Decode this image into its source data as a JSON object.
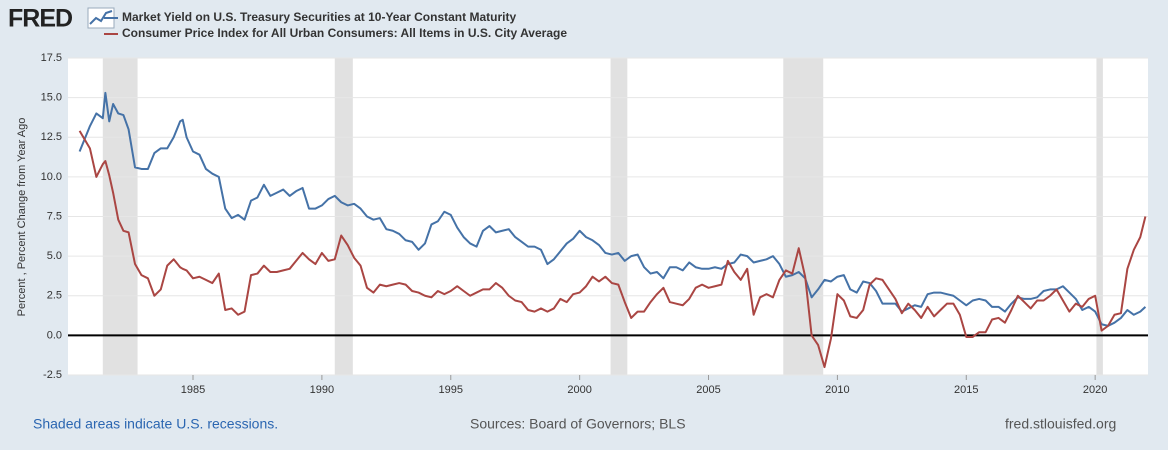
{
  "logo": "FRED",
  "chart_data": {
    "type": "line",
    "y_label": "Percent , Percent Change from Year Ago",
    "x": [
      1980.6,
      1981.0,
      1981.25,
      1981.5,
      1981.6,
      1981.75,
      1981.9,
      1982.1,
      1982.3,
      1982.5,
      1982.75,
      1983.0,
      1983.25,
      1983.5,
      1983.75,
      1984.0,
      1984.25,
      1984.5,
      1984.6,
      1984.75,
      1985.0,
      1985.25,
      1985.5,
      1985.75,
      1986.0,
      1986.25,
      1986.5,
      1986.75,
      1987.0,
      1987.25,
      1987.5,
      1987.75,
      1988.0,
      1988.25,
      1988.5,
      1988.75,
      1989.0,
      1989.25,
      1989.5,
      1989.75,
      1990.0,
      1990.25,
      1990.5,
      1990.75,
      1991.0,
      1991.25,
      1991.5,
      1991.75,
      1992.0,
      1992.25,
      1992.5,
      1992.75,
      1993.0,
      1993.25,
      1993.5,
      1993.75,
      1994.0,
      1994.25,
      1994.5,
      1994.75,
      1995.0,
      1995.25,
      1995.5,
      1995.75,
      1996.0,
      1996.25,
      1996.5,
      1996.75,
      1997.0,
      1997.25,
      1997.5,
      1997.75,
      1998.0,
      1998.25,
      1998.5,
      1998.75,
      1999.0,
      1999.25,
      1999.5,
      1999.75,
      2000.0,
      2000.25,
      2000.5,
      2000.75,
      2001.0,
      2001.25,
      2001.5,
      2001.75,
      2002.0,
      2002.25,
      2002.5,
      2002.75,
      2003.0,
      2003.25,
      2003.5,
      2003.75,
      2004.0,
      2004.25,
      2004.5,
      2004.75,
      2005.0,
      2005.25,
      2005.5,
      2005.75,
      2006.0,
      2006.25,
      2006.5,
      2006.75,
      2007.0,
      2007.25,
      2007.5,
      2007.75,
      2008.0,
      2008.25,
      2008.5,
      2008.75,
      2009.0,
      2009.25,
      2009.5,
      2009.75,
      2010.0,
      2010.25,
      2010.5,
      2010.75,
      2011.0,
      2011.25,
      2011.5,
      2011.75,
      2012.0,
      2012.25,
      2012.5,
      2012.75,
      2013.0,
      2013.25,
      2013.5,
      2013.75,
      2014.0,
      2014.25,
      2014.5,
      2014.75,
      2015.0,
      2015.25,
      2015.5,
      2015.75,
      2016.0,
      2016.25,
      2016.5,
      2016.75,
      2017.0,
      2017.25,
      2017.5,
      2017.75,
      2018.0,
      2018.25,
      2018.5,
      2018.75,
      2019.0,
      2019.25,
      2019.5,
      2019.75,
      2020.0,
      2020.25,
      2020.5,
      2020.75,
      2021.0,
      2021.25,
      2021.5,
      2021.75,
      2021.95
    ],
    "series": [
      {
        "name": "Market Yield on U.S. Treasury Securities at 10-Year Constant Maturity",
        "color": "#4572a7",
        "values": [
          11.6,
          13.2,
          14.0,
          13.7,
          15.3,
          13.5,
          14.6,
          14.0,
          13.9,
          13.0,
          10.6,
          10.5,
          10.5,
          11.5,
          11.8,
          11.8,
          12.5,
          13.5,
          13.6,
          12.5,
          11.6,
          11.4,
          10.5,
          10.2,
          10.0,
          8.0,
          7.4,
          7.6,
          7.3,
          8.5,
          8.7,
          9.5,
          8.8,
          9.0,
          9.2,
          8.8,
          9.1,
          9.3,
          8.0,
          8.0,
          8.2,
          8.6,
          8.8,
          8.4,
          8.2,
          8.3,
          8.0,
          7.5,
          7.3,
          7.4,
          6.7,
          6.6,
          6.4,
          6.0,
          5.9,
          5.4,
          5.8,
          7.0,
          7.2,
          7.8,
          7.6,
          6.8,
          6.2,
          5.8,
          5.6,
          6.6,
          6.9,
          6.5,
          6.6,
          6.7,
          6.2,
          5.9,
          5.6,
          5.6,
          5.4,
          4.5,
          4.8,
          5.3,
          5.8,
          6.1,
          6.6,
          6.2,
          6.0,
          5.7,
          5.2,
          5.1,
          5.2,
          4.7,
          5.0,
          5.1,
          4.3,
          3.9,
          4.0,
          3.6,
          4.3,
          4.3,
          4.1,
          4.6,
          4.3,
          4.2,
          4.2,
          4.3,
          4.2,
          4.5,
          4.6,
          5.1,
          5.0,
          4.6,
          4.7,
          4.8,
          5.0,
          4.5,
          3.7,
          3.8,
          4.0,
          3.6,
          2.4,
          2.9,
          3.5,
          3.4,
          3.7,
          3.8,
          2.9,
          2.7,
          3.4,
          3.3,
          2.8,
          2.0,
          2.0,
          2.0,
          1.5,
          1.7,
          1.9,
          1.8,
          2.6,
          2.7,
          2.7,
          2.6,
          2.5,
          2.2,
          1.9,
          2.2,
          2.3,
          2.2,
          1.8,
          1.8,
          1.5,
          2.0,
          2.4,
          2.3,
          2.3,
          2.4,
          2.8,
          2.9,
          2.9,
          3.1,
          2.7,
          2.3,
          1.6,
          1.8,
          1.5,
          0.7,
          0.6,
          0.8,
          1.1,
          1.6,
          1.3,
          1.5,
          1.8
        ]
      },
      {
        "name": "Consumer Price Index for All Urban Consumers: All Items in U.S. City Average",
        "color": "#aa4643",
        "values": [
          12.9,
          11.8,
          10.0,
          10.8,
          11.0,
          10.1,
          9.0,
          7.3,
          6.6,
          6.5,
          4.5,
          3.8,
          3.6,
          2.5,
          2.9,
          4.4,
          4.8,
          4.3,
          4.2,
          4.1,
          3.6,
          3.7,
          3.5,
          3.3,
          3.9,
          1.6,
          1.7,
          1.3,
          1.5,
          3.8,
          3.9,
          4.4,
          4.0,
          4.0,
          4.1,
          4.2,
          4.7,
          5.2,
          4.8,
          4.5,
          5.2,
          4.7,
          4.8,
          6.3,
          5.7,
          4.9,
          4.4,
          3.0,
          2.7,
          3.2,
          3.1,
          3.2,
          3.3,
          3.2,
          2.8,
          2.7,
          2.5,
          2.4,
          2.8,
          2.6,
          2.8,
          3.1,
          2.8,
          2.5,
          2.7,
          2.9,
          2.9,
          3.3,
          3.0,
          2.5,
          2.2,
          2.1,
          1.6,
          1.5,
          1.7,
          1.5,
          1.7,
          2.3,
          2.1,
          2.6,
          2.7,
          3.1,
          3.7,
          3.4,
          3.7,
          3.3,
          3.2,
          2.1,
          1.1,
          1.5,
          1.5,
          2.1,
          2.6,
          3.0,
          2.1,
          2.0,
          1.9,
          2.3,
          3.0,
          3.2,
          3.0,
          3.1,
          3.2,
          4.7,
          4.0,
          3.5,
          4.2,
          1.3,
          2.4,
          2.6,
          2.4,
          3.5,
          4.1,
          3.9,
          5.5,
          3.7,
          0.0,
          -0.6,
          -2.0,
          -0.2,
          2.6,
          2.2,
          1.2,
          1.1,
          1.6,
          3.2,
          3.6,
          3.5,
          2.9,
          2.3,
          1.4,
          2.0,
          1.6,
          1.1,
          1.8,
          1.2,
          1.6,
          2.0,
          2.0,
          1.3,
          -0.1,
          -0.1,
          0.2,
          0.2,
          1.0,
          1.1,
          0.8,
          1.6,
          2.5,
          2.1,
          1.7,
          2.2,
          2.2,
          2.5,
          2.9,
          2.2,
          1.5,
          2.0,
          1.8,
          2.3,
          2.5,
          0.3,
          0.6,
          1.3,
          1.4,
          4.2,
          5.4,
          6.2,
          7.5
        ]
      }
    ],
    "recessions": [
      [
        1981.5,
        1982.85
      ],
      [
        1990.5,
        1991.2
      ],
      [
        2001.2,
        2001.85
      ],
      [
        2007.9,
        2009.45
      ],
      [
        2020.05,
        2020.3
      ]
    ],
    "xlim": [
      1980.15,
      2022.05
    ],
    "xticks": [
      1985,
      1990,
      1995,
      2000,
      2005,
      2010,
      2015,
      2020
    ],
    "ylim": [
      -2.5,
      17.5
    ],
    "yticks": [
      -2.5,
      {
        "value": 0,
        "label": "0.0"
      },
      2.5,
      {
        "value": 5,
        "label": "5.0"
      },
      7.5,
      {
        "value": 10,
        "label": "10.0"
      },
      12.5,
      {
        "value": 15,
        "label": "15.0"
      },
      17.5
    ],
    "grid": true,
    "recession_color": "#e1e1e1",
    "zero_line_color": "#000000"
  },
  "footer": {
    "note": "Shaded areas indicate U.S. recessions.",
    "sources": "Sources: Board of Governors; BLS",
    "site": "fred.stlouisfed.org"
  }
}
